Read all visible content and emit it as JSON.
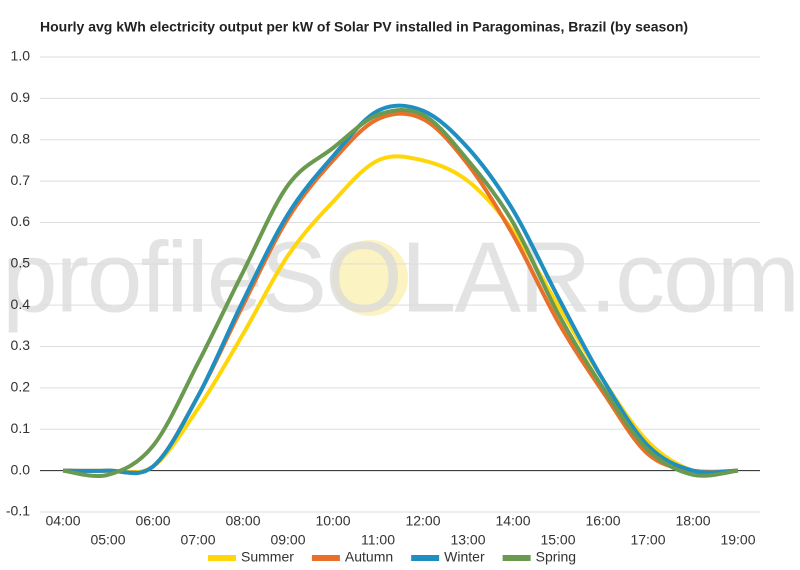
{
  "chart_data": {
    "type": "line",
    "title": "Hourly avg kWh electricity output per kW of Solar PV installed in Paragominas, Brazil (by season)",
    "watermark": "profileSOLAR.com",
    "categories": [
      "04:00",
      "05:00",
      "06:00",
      "07:00",
      "08:00",
      "09:00",
      "10:00",
      "11:00",
      "12:00",
      "13:00",
      "14:00",
      "15:00",
      "16:00",
      "17:00",
      "18:00",
      "19:00"
    ],
    "ylim": [
      -0.1,
      1
    ],
    "yticks": [
      {
        "value": 1,
        "label": "1.0"
      },
      0.9,
      0.8,
      0.7,
      0.6,
      0.5,
      0.4,
      0.3,
      0.2,
      0.1,
      {
        "value": 0,
        "label": "0.0"
      },
      -0.1
    ],
    "grid": true,
    "legend": "bottom",
    "series": [
      {
        "name": "Summer",
        "color": "#ffd60a",
        "values": [
          0,
          0,
          0.01,
          0.15,
          0.33,
          0.52,
          0.65,
          0.75,
          0.75,
          0.7,
          0.58,
          0.4,
          0.22,
          0.07,
          0,
          0
        ]
      },
      {
        "name": "Autumn",
        "color": "#e8702a",
        "values": [
          0,
          0,
          0.01,
          0.18,
          0.4,
          0.61,
          0.75,
          0.85,
          0.85,
          0.74,
          0.57,
          0.36,
          0.19,
          0.04,
          0,
          0
        ]
      },
      {
        "name": "Winter",
        "color": "#1f8fc1",
        "values": [
          0,
          0,
          0.01,
          0.18,
          0.41,
          0.62,
          0.76,
          0.87,
          0.87,
          0.78,
          0.63,
          0.42,
          0.22,
          0.06,
          0,
          0
        ]
      },
      {
        "name": "Spring",
        "color": "#6a9a4f",
        "values": [
          0,
          -0.01,
          0.06,
          0.26,
          0.48,
          0.69,
          0.78,
          0.86,
          0.86,
          0.75,
          0.6,
          0.38,
          0.2,
          0.05,
          -0.01,
          0
        ]
      }
    ]
  }
}
